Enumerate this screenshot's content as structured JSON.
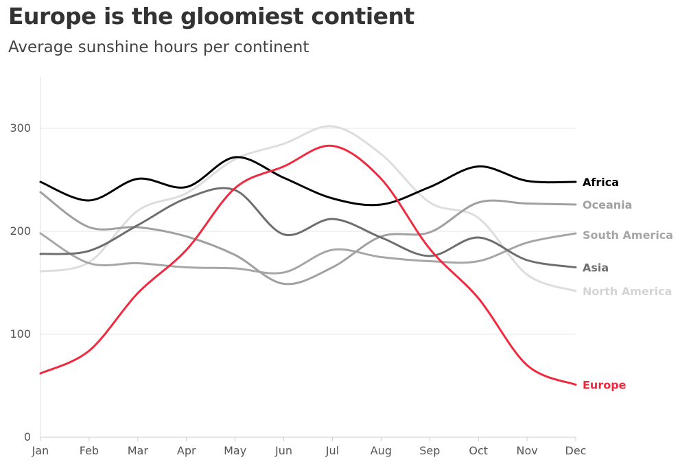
{
  "header": {
    "title": "Europe is the gloomiest contient",
    "subtitle": "Average sunshine hours per continent"
  },
  "chart_data": {
    "type": "line",
    "title": "Europe is the gloomiest contient",
    "subtitle": "Average sunshine hours per continent",
    "xlabel": "",
    "ylabel": "",
    "categories": [
      "Jan",
      "Feb",
      "Mar",
      "Apr",
      "May",
      "Jun",
      "Jul",
      "Aug",
      "Sep",
      "Oct",
      "Nov",
      "Dec"
    ],
    "ylim": [
      0,
      350
    ],
    "yticks": [
      0,
      100,
      200,
      300
    ],
    "grid": true,
    "legend": "direct labels at line ends (right)",
    "series": [
      {
        "name": "North America",
        "color": "#dddddd",
        "values": [
          161,
          170,
          220,
          237,
          270,
          285,
          302,
          275,
          228,
          213,
          158,
          142
        ]
      },
      {
        "name": "South America",
        "color": "#a6a6a6",
        "values": [
          198,
          169,
          169,
          165,
          164,
          160,
          182,
          175,
          171,
          171,
          189,
          198
        ]
      },
      {
        "name": "Oceania",
        "color": "#a0a0a0",
        "values": [
          238,
          204,
          204,
          195,
          177,
          149,
          165,
          195,
          199,
          228,
          227,
          226
        ]
      },
      {
        "name": "Asia",
        "color": "#6e6e6e",
        "values": [
          178,
          181,
          206,
          232,
          240,
          197,
          212,
          194,
          176,
          194,
          172,
          165
        ]
      },
      {
        "name": "Africa",
        "color": "#000000",
        "values": [
          248,
          230,
          251,
          243,
          272,
          252,
          232,
          226,
          243,
          263,
          249,
          248
        ]
      },
      {
        "name": "Europe",
        "color": "#f0293f",
        "values": [
          62,
          84,
          140,
          182,
          242,
          263,
          283,
          251,
          183,
          135,
          70,
          51
        ]
      }
    ]
  }
}
